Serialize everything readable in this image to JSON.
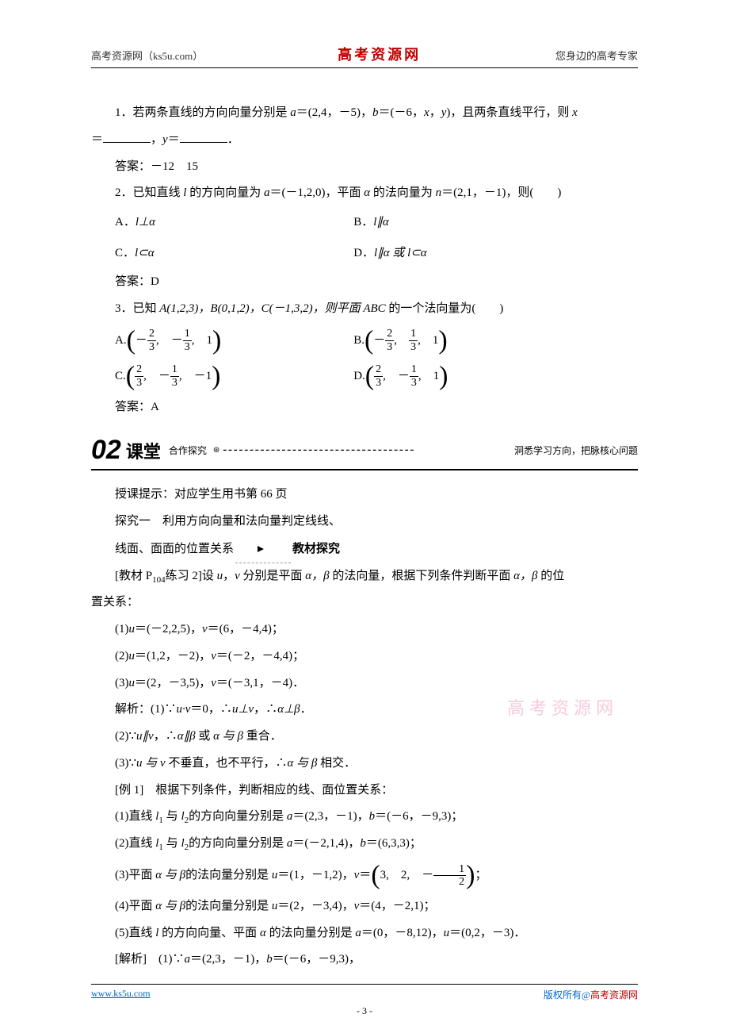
{
  "header": {
    "left": "高考资源网（ks5u.com）",
    "center": "高考资源网",
    "right": "您身边的高考专家"
  },
  "q1": {
    "text_a": "1．若两条直线的方向向量分别是 ",
    "vec_a": "a",
    "eq_a": "＝(2,4，－5)，",
    "vec_b": "b",
    "eq_b": "＝(－6，",
    "var_x": "x",
    "mid": "，",
    "var_y": "y",
    "after": ")，且两条直线平行，则 ",
    "var_x2": "x",
    "line2_a": "＝",
    "line2_b": "，",
    "var_y2": "y",
    "line2_c": "＝",
    "line2_d": "．",
    "ans": "答案：－12　15"
  },
  "q2": {
    "text": "2．已知直线 ",
    "l": "l",
    "text2": " 的方向向量为 ",
    "a": "a",
    "eqa": "＝(－1,2,0)，平面 ",
    "alpha": "α",
    "text3": " 的法向量为 ",
    "n": "n",
    "eqn": "＝(2,1，－1)，则(　　)",
    "optA": "A．",
    "optA_r": "l⊥α",
    "optB": "B．",
    "optB_r": "l∥α",
    "optC": "C．",
    "optC_r": "l⊂α",
    "optD": "D．",
    "optD_r": "l∥α 或 l⊂α",
    "ans": "答案：D"
  },
  "q3": {
    "text": "3．已知 ",
    "pts": "A(1,2,3)，B(0,1,2)，C(－1,3,2)，则平面 ",
    "abc": "ABC",
    "after": " 的一个法向量为(　　)",
    "A": "A.",
    "B": "B.",
    "C": "C.",
    "D": "D.",
    "a1n": "2",
    "a1d": "3",
    "a2n": "1",
    "a2d": "3",
    "a3": "1",
    "b1n": "2",
    "b1d": "3",
    "b2n": "1",
    "b2d": "3",
    "b3": "1",
    "c1n": "2",
    "c1d": "3",
    "c2n": "1",
    "c2d": "3",
    "c3": "1",
    "d1n": "2",
    "d1d": "3",
    "d2n": "1",
    "d2d": "3",
    "d3": "1",
    "ans": "答案：A"
  },
  "sect": {
    "num": "02",
    "title": "课堂",
    "sub": "合作探究",
    "tag": "洞悉学习方向，把脉核心问题"
  },
  "body": {
    "tip": "授课提示：对应学生用书第 66 页",
    "t1a": "探究一　利用方向向量和法向量判定线线、",
    "t1b": "线面、面面的位置关系",
    "t1c": "教材探究",
    "p1a": "[教材 P",
    "p1b": "104",
    "p1c": "练习 2]设 ",
    "u": "u",
    "v": "v",
    "p1d": " 分别是平面 ",
    "ab": "α，β",
    "p1e": " 的法向量，根据下列条件判断平面 ",
    "p1f": " 的位",
    "p1g": "置关系：",
    "r1": "(1)",
    "r1u": "u",
    "r1a": "＝(－2,2,5)，",
    "r1v": "v",
    "r1b": "＝(6，－4,4)；",
    "r2": "(2)",
    "r2u": "u",
    "r2a": "＝(1,2，－2)，",
    "r2v": "v",
    "r2b": "＝(－2，－4,4)；",
    "r3": "(3)",
    "r3u": "u",
    "r3a": "＝(2，－3,5)，",
    "r3v": "v",
    "r3b": "＝(－3,1，－4)．",
    "sol": "解析：(1)∵",
    "sol1a": "u·v",
    "sol1b": "＝0，∴",
    "sol1c": "u⊥v",
    "sol1d": "，∴",
    "sol1e": "α⊥β",
    "sol1f": "．",
    "s2a": "(2)∵",
    "s2b": "u∥v",
    "s2c": "，∴",
    "s2d": "α∥β",
    "s2e": " 或 ",
    "s2f": "α 与 β",
    "s2g": " 重合．",
    "s3a": "(3)∵",
    "s3b": "u 与 v",
    "s3c": " 不垂直，也不平行，∴",
    "s3d": "α 与 β",
    "s3e": " 相交．",
    "ex1": "[例 1]　根据下列条件，判断相应的线、面位置关系：",
    "e1": "(1)直线 ",
    "l1": "l",
    "e1s1": "1",
    "e1a": " 与 ",
    "l2": "l",
    "e1s2": "2",
    "e1b": "的方向向量分别是 ",
    "e1c": "a",
    "e1d": "＝(2,3，－1)，",
    "e1e": "b",
    "e1f": "＝(－6，－9,3)；",
    "e2": "(2)直线 ",
    "e2b": "的方向向量分别是 ",
    "e2c": "a",
    "e2d": "＝(－2,1,4)，",
    "e2e": "b",
    "e2f": "＝(6,3,3)；",
    "e3": "(3)平面 ",
    "e3a": "α 与 β",
    "e3b": "的法向量分别是 ",
    "e3c": "u",
    "e3d": "＝(1，－1,2)，",
    "e3e": "v",
    "e3f": "＝",
    "e3g1": "3,　2,　－",
    "e3gn": "1",
    "e3gd": "2",
    "e3h": "；",
    "e4": "(4)平面 ",
    "e4a": "α 与 β",
    "e4b": "的法向量分别是 ",
    "e4c": "u",
    "e4d": "＝(2，－3,4)，",
    "e4e": "v",
    "e4f": "＝(4，－2,1)；",
    "e5": "(5)直线 ",
    "e5l": "l",
    "e5a": " 的方向向量、平面 ",
    "e5al": "α",
    "e5b": " 的法向量分别是 ",
    "e5c": "a",
    "e5d": "＝(0，－8,12)，",
    "e5e": "u",
    "e5f": "＝(0,2，－3)．",
    "jx": "[解析]　(1)∵",
    "jxa": "a",
    "jxb": "＝(2,3，－1)，",
    "jxc": "b",
    "jxd": "＝(－6，－9,3)，"
  },
  "watermark": "高考资源网",
  "footer": {
    "left": "www.ks5u.com",
    "right_a": "版权所有@",
    "right_b": "高考资源网",
    "page": "- 3 -"
  }
}
